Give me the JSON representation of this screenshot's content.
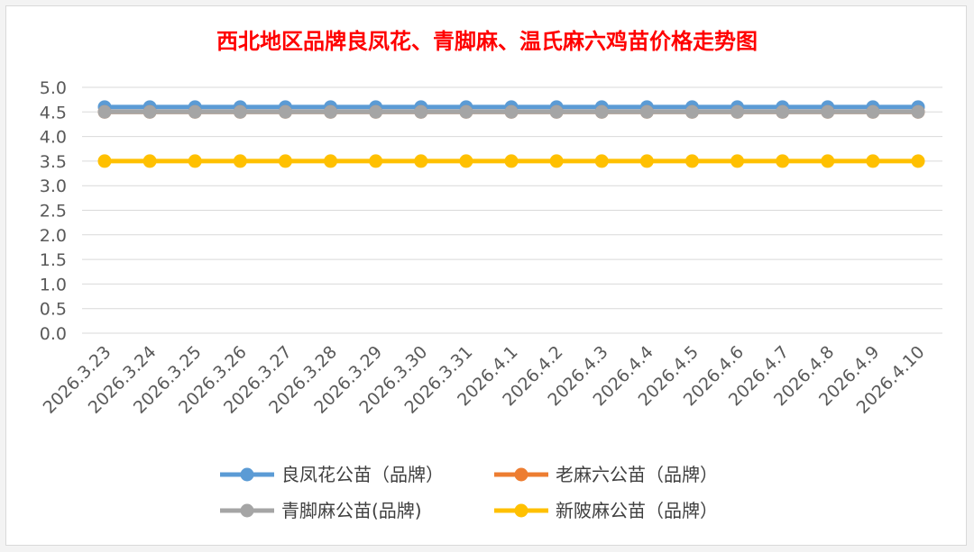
{
  "chart_data": {
    "type": "line",
    "title": "西北地区品牌良凤花、青脚麻、温氏麻六鸡苗价格走势图",
    "xlabel": "",
    "ylabel": "",
    "categories": [
      "2026.3.23",
      "2026.3.24",
      "2026.3.25",
      "2026.3.26",
      "2026.3.27",
      "2026.3.28",
      "2026.3.29",
      "2026.3.30",
      "2026.3.31",
      "2026.4.1",
      "2026.4.2",
      "2026.4.3",
      "2026.4.4",
      "2026.4.5",
      "2026.4.6",
      "2026.4.7",
      "2026.4.8",
      "2026.4.9",
      "2026.4.10"
    ],
    "ylim": [
      0,
      5
    ],
    "yticks": [
      "0.0",
      "0.5",
      "1.0",
      "1.5",
      "2.0",
      "2.5",
      "3.0",
      "3.5",
      "4.0",
      "4.5",
      "5.0"
    ],
    "grid": true,
    "legend_position": "bottom",
    "series": [
      {
        "name": "良凤花公苗（品牌）",
        "color": "#5b9bd5",
        "values": [
          4.6,
          4.6,
          4.6,
          4.6,
          4.6,
          4.6,
          4.6,
          4.6,
          4.6,
          4.6,
          4.6,
          4.6,
          4.6,
          4.6,
          4.6,
          4.6,
          4.6,
          4.6,
          4.6
        ]
      },
      {
        "name": "老麻六公苗（品牌）",
        "color": "#ed7d31",
        "values": [
          4.5,
          4.5,
          4.5,
          4.5,
          4.5,
          4.5,
          4.5,
          4.5,
          4.5,
          4.5,
          4.5,
          4.5,
          4.5,
          4.5,
          4.5,
          4.5,
          4.5,
          4.5,
          4.5
        ]
      },
      {
        "name": "青脚麻公苗(品牌)",
        "color": "#a5a5a5",
        "values": [
          4.5,
          4.5,
          4.5,
          4.5,
          4.5,
          4.5,
          4.5,
          4.5,
          4.5,
          4.5,
          4.5,
          4.5,
          4.5,
          4.5,
          4.5,
          4.5,
          4.5,
          4.5,
          4.5
        ]
      },
      {
        "name": "新陂麻公苗（品牌）",
        "color": "#ffc000",
        "values": [
          3.5,
          3.5,
          3.5,
          3.5,
          3.5,
          3.5,
          3.5,
          3.5,
          3.5,
          3.5,
          3.5,
          3.5,
          3.5,
          3.5,
          3.5,
          3.5,
          3.5,
          3.5,
          3.5
        ]
      }
    ],
    "legend_order": [
      0,
      1,
      2,
      3
    ]
  }
}
